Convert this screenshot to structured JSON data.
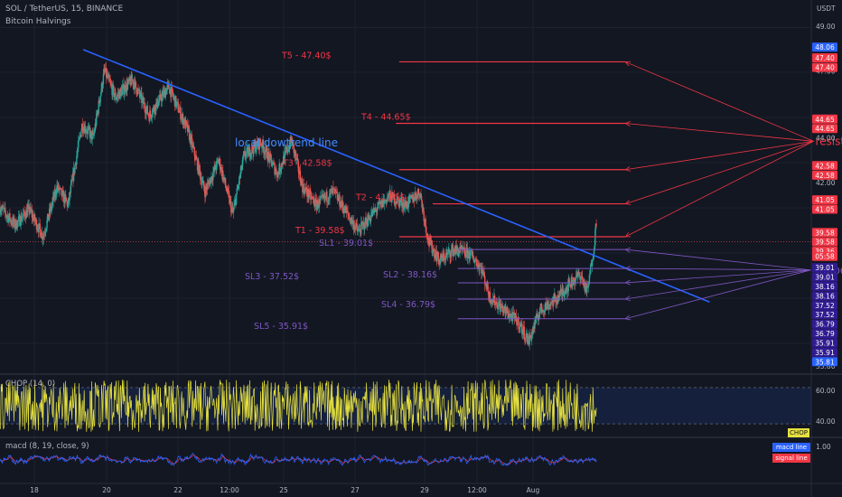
{
  "header": {
    "symbol_line": "SOL / TetherUS, 15, BINANCE",
    "indicator": "Bitcoin Halvings",
    "currency": "USDT"
  },
  "colors": {
    "background": "#131722",
    "resistance": "#f23645",
    "support": "#7e57c2",
    "trend": "#2962ff",
    "up_candle": "#26a69a",
    "down_candle": "#ef5350",
    "chop_line": "#e6e13d",
    "macd_line": "#2962ff",
    "signal_line": "#f23645"
  },
  "chart_data": {
    "type": "candlestick",
    "ylim": [
      33.8,
      49.6
    ],
    "y_ticks": [
      "49.00",
      "47.00",
      "44.00",
      "42.00",
      "33.80"
    ],
    "x_ticks": [
      "18",
      "20",
      "22",
      "12:00",
      "25",
      "27",
      "29",
      "12:00",
      "Aug"
    ],
    "last_price": "39.36",
    "countdown": "05:58",
    "trendline": {
      "label": "local dowtrend line",
      "from": {
        "day": 18.82,
        "price": 47.95
      },
      "to": {
        "day": 30.04,
        "price": 36.66
      }
    },
    "targets": [
      {
        "label": "T1 - 39.58$",
        "value": 39.58,
        "x_from": 24.48,
        "x_to": 28.53
      },
      {
        "label": "T2 - 41.05$",
        "value": 41.05,
        "x_from": 25.08,
        "x_to": 28.53
      },
      {
        "label": "T3 - 42.58$",
        "value": 42.58,
        "x_from": 24.48,
        "x_to": 28.53
      },
      {
        "label": "T4 - 44.65$",
        "value": 44.65,
        "x_from": 24.42,
        "x_to": 28.53
      },
      {
        "label": "T5 - 47.40$",
        "value": 47.4,
        "x_from": 24.48,
        "x_to": 28.53
      }
    ],
    "stops": [
      {
        "label": "SL1 - 39.01$",
        "value": 39.01,
        "x_from": 25.53,
        "x_to": 28.53
      },
      {
        "label": "SL2 - 38.16$",
        "value": 38.16,
        "x_from": 25.53,
        "x_to": 28.53
      },
      {
        "label": "SL3 - 37.52$",
        "value": 37.52,
        "x_from": 25.53,
        "x_to": 28.53
      },
      {
        "label": "SL4 - 36.79$",
        "value": 36.79,
        "x_from": 25.53,
        "x_to": 28.53
      },
      {
        "label": "SL5 - 35.91$",
        "value": 35.91,
        "x_from": 25.53,
        "x_to": 28.53
      }
    ],
    "annotations": {
      "resistance": {
        "label": "resistance line",
        "anchor": {
          "day": 31.9,
          "price": 43.85
        }
      },
      "support": {
        "label": "Support line",
        "anchor": {
          "day": 31.85,
          "price": 38.09
        }
      }
    },
    "price_tags": [
      {
        "value": 48.06,
        "label": "48.06",
        "color": "#2962ff"
      },
      {
        "value": 47.58,
        "label": "47.40",
        "color": "#f23645"
      },
      {
        "value": 47.15,
        "label": "47.40",
        "color": "#f23645"
      },
      {
        "value": 44.84,
        "label": "44.65",
        "color": "#f23645"
      },
      {
        "value": 44.42,
        "label": "44.65",
        "color": "#f23645"
      },
      {
        "value": 42.76,
        "label": "42.58",
        "color": "#f23645"
      },
      {
        "value": 42.33,
        "label": "42.58",
        "color": "#f23645"
      },
      {
        "value": 41.23,
        "label": "41.05",
        "color": "#f23645"
      },
      {
        "value": 40.81,
        "label": "41.05",
        "color": "#f23645"
      },
      {
        "value": 39.77,
        "label": "39.58",
        "color": "#f23645"
      },
      {
        "value": 39.35,
        "label": "39.58",
        "color": "#f23645"
      },
      {
        "value": 38.93,
        "label": "39.36",
        "color": "#f23645"
      },
      {
        "value": 38.7,
        "label": "05:58",
        "color": "#f23645"
      },
      {
        "value": 38.2,
        "label": "39.01",
        "color": "#311b92"
      },
      {
        "value": 37.78,
        "label": "39.01",
        "color": "#311b92"
      },
      {
        "value": 37.36,
        "label": "38.16",
        "color": "#311b92"
      },
      {
        "value": 36.93,
        "label": "38.16",
        "color": "#311b92"
      },
      {
        "value": 36.51,
        "label": "37.52",
        "color": "#311b92"
      },
      {
        "value": 36.1,
        "label": "37.52",
        "color": "#311b92"
      },
      {
        "value": 35.67,
        "label": "36.79",
        "color": "#311b92"
      },
      {
        "value": 35.25,
        "label": "36.79",
        "color": "#311b92"
      },
      {
        "value": 34.83,
        "label": "35.91",
        "color": "#311b92"
      },
      {
        "value": 34.41,
        "label": "35.91",
        "color": "#311b92"
      },
      {
        "value": 33.99,
        "label": "35.81",
        "color": "#2962ff"
      }
    ],
    "price_path": [
      [
        17.33,
        40.9
      ],
      [
        17.6,
        40.1
      ],
      [
        17.85,
        40.8
      ],
      [
        18.1,
        39.6
      ],
      [
        18.35,
        41.8
      ],
      [
        18.55,
        41.0
      ],
      [
        18.8,
        44.6
      ],
      [
        19.0,
        44.0
      ],
      [
        19.2,
        47.0
      ],
      [
        19.4,
        45.8
      ],
      [
        19.7,
        46.6
      ],
      [
        20.0,
        45.0
      ],
      [
        20.35,
        46.3
      ],
      [
        20.7,
        44.3
      ],
      [
        21.0,
        41.6
      ],
      [
        21.25,
        43.0
      ],
      [
        21.5,
        40.6
      ],
      [
        21.7,
        43.2
      ],
      [
        22.0,
        43.8
      ],
      [
        22.3,
        42.4
      ],
      [
        22.55,
        43.9
      ],
      [
        22.75,
        41.8
      ],
      [
        23.0,
        41.0
      ],
      [
        23.3,
        41.6
      ],
      [
        23.55,
        40.6
      ],
      [
        23.75,
        39.8
      ],
      [
        24.0,
        40.6
      ],
      [
        24.3,
        41.4
      ],
      [
        24.6,
        41.0
      ],
      [
        24.85,
        41.6
      ],
      [
        25.0,
        39.4
      ],
      [
        25.2,
        38.5
      ],
      [
        25.45,
        39.0
      ],
      [
        25.75,
        38.8
      ],
      [
        25.95,
        38.2
      ],
      [
        26.1,
        36.9
      ],
      [
        26.4,
        36.2
      ],
      [
        26.6,
        35.8
      ],
      [
        26.8,
        34.9
      ],
      [
        27.0,
        36.3
      ],
      [
        27.3,
        36.8
      ],
      [
        27.5,
        37.4
      ],
      [
        27.72,
        37.9
      ],
      [
        27.85,
        37.1
      ],
      [
        27.98,
        39.4
      ],
      [
        28.02,
        40.6
      ]
    ]
  },
  "chop": {
    "label": "CHOP (14, 0)",
    "ticks": [
      "60.00",
      "40.00"
    ],
    "ylim": [
      30,
      70
    ],
    "band": [
      38.2,
      61.8
    ],
    "badge": "CHOP"
  },
  "macd": {
    "label": "macd (8, 19, close, 9)",
    "tick": "1.00",
    "legend_macd": "macd line",
    "legend_signal": "signal line"
  }
}
